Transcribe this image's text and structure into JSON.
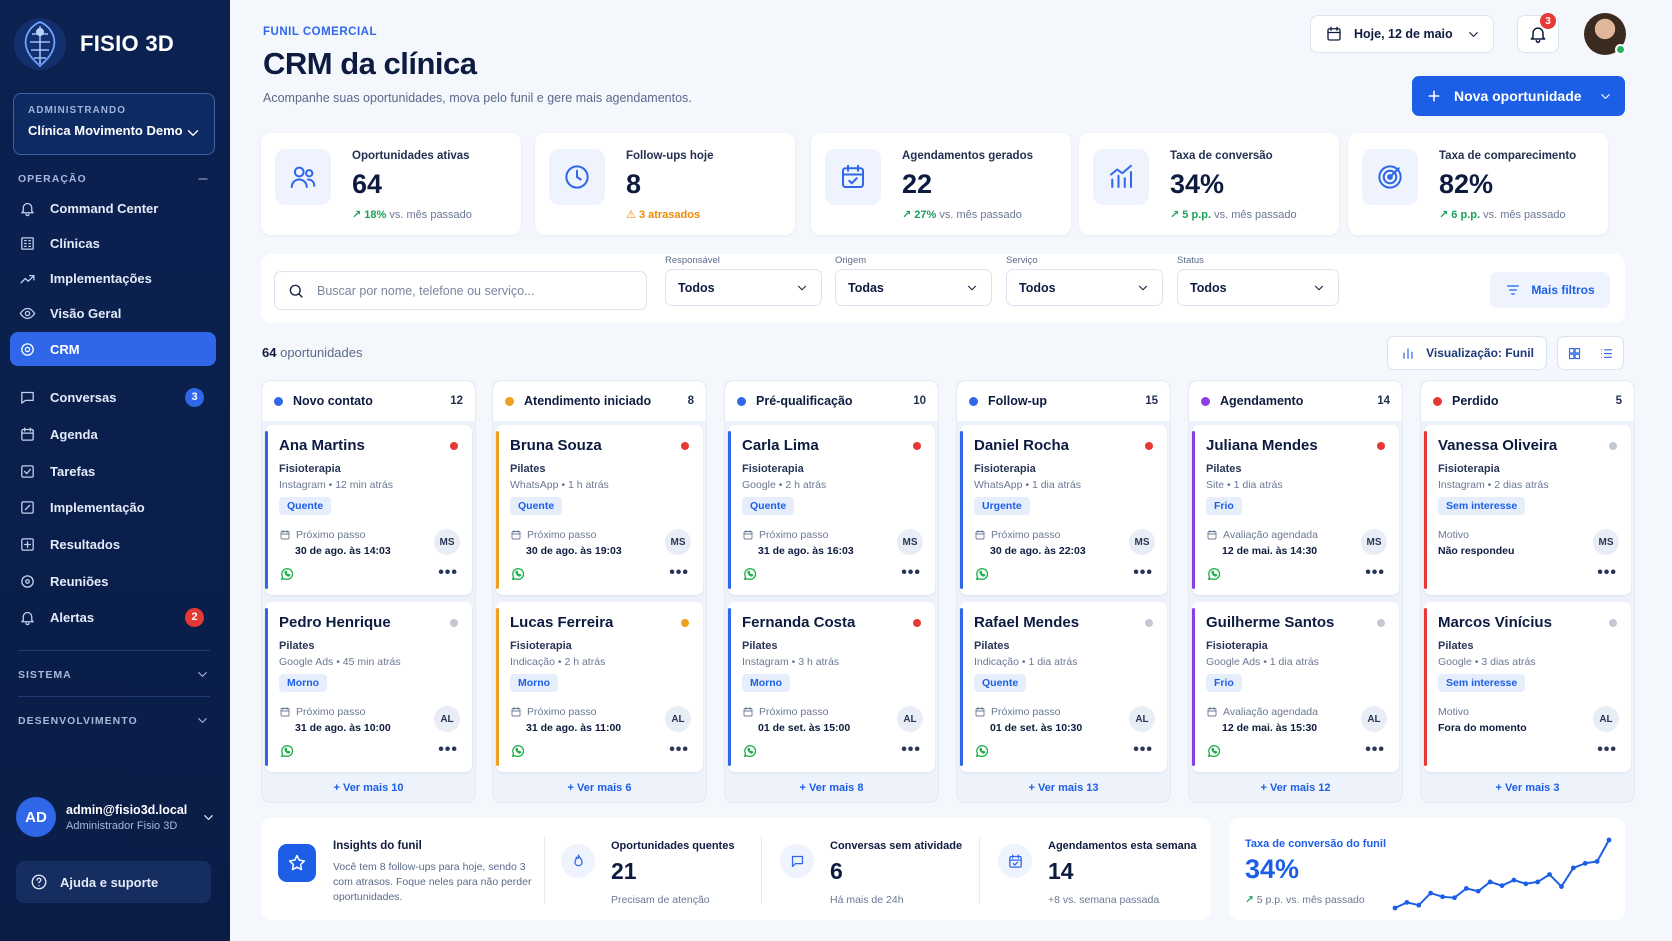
{
  "brand": {
    "name": "FISIO 3D"
  },
  "account": {
    "label": "ADMINISTRANDO",
    "clinic": "Clínica Movimento Demo"
  },
  "sidebar": {
    "sections": [
      {
        "label": "OPERAÇÃO"
      },
      {
        "label": "SISTEMA"
      },
      {
        "label": "DESENVOLVIMENTO"
      }
    ],
    "items": [
      {
        "label": "Command Center",
        "icon": "bell-icon"
      },
      {
        "label": "Clínicas",
        "icon": "building-icon"
      },
      {
        "label": "Implementações",
        "icon": "trend-icon"
      },
      {
        "label": "Visão Geral",
        "icon": "eye-icon"
      },
      {
        "label": "CRM",
        "icon": "target-icon",
        "active": true
      },
      {
        "label": "Conversas",
        "icon": "chat-icon",
        "badge": "3"
      },
      {
        "label": "Agenda",
        "icon": "calendar-icon"
      },
      {
        "label": "Tarefas",
        "icon": "checklist-icon"
      },
      {
        "label": "Implementação",
        "icon": "edit-icon"
      },
      {
        "label": "Resultados",
        "icon": "plus-square-icon"
      },
      {
        "label": "Reuniões",
        "icon": "circle-icon"
      },
      {
        "label": "Alertas",
        "icon": "bell-icon",
        "badge": "2"
      }
    ],
    "badge_colors": {
      "conversas": "#2f67e8",
      "alertas": "#e53935"
    }
  },
  "user": {
    "initials": "AD",
    "email": "admin@fisio3d.local",
    "role": "Administrador Fisio 3D"
  },
  "help": {
    "label": "Ajuda e suporte"
  },
  "header": {
    "eyebrow": "FUNIL COMERCIAL",
    "title": "CRM da clínica",
    "subtitle": "Acompanhe suas oportunidades, mova pelo funil e gere mais agendamentos.",
    "date_label": "Hoje, 12 de maio",
    "notifications": "3",
    "new_button": "Nova oportunidade"
  },
  "kpis": [
    {
      "label": "Oportunidades ativas",
      "value": "64",
      "delta": "18%",
      "delta_text": "vs. mês passado",
      "icon": "users-icon"
    },
    {
      "label": "Follow-ups hoje",
      "value": "8",
      "delta": "3 atrasados",
      "delta_text": "",
      "icon": "clock-icon"
    },
    {
      "label": "Agendamentos gerados",
      "value": "22",
      "delta": "27%",
      "delta_text": "vs. mês passado",
      "icon": "calendar-check-icon"
    },
    {
      "label": "Taxa de conversão",
      "value": "34%",
      "delta": "5 p.p.",
      "delta_text": "vs. mês passado",
      "icon": "bar-chart-icon"
    },
    {
      "label": "Taxa de comparecimento",
      "value": "82%",
      "delta": "6 p.p.",
      "delta_text": "vs. mês passado",
      "icon": "target-icon"
    }
  ],
  "filters": {
    "search_placeholder": "Buscar por nome, telefone ou serviço...",
    "selects": [
      {
        "label": "Responsável",
        "value": "Todos"
      },
      {
        "label": "Origem",
        "value": "Todas"
      },
      {
        "label": "Serviço",
        "value": "Todos"
      },
      {
        "label": "Status",
        "value": "Todos"
      }
    ],
    "more": "Mais filtros"
  },
  "summary": {
    "count": "64",
    "count_label": "oportunidades",
    "view_label": "Visualização: Funil"
  },
  "columns": [
    {
      "name": "Novo contato",
      "count": "12",
      "color": "#2f67e8",
      "see_more": "+ Ver mais 10",
      "cards": [
        {
          "name": "Ana Martins",
          "service": "Fisioterapia",
          "source": "Instagram • 12 min atrás",
          "tag": "Quente",
          "tag_kind": "blue",
          "priority": "#e53935",
          "next_label": "Próximo passo",
          "next_value": "30 de ago. às 14:03",
          "owner": "MS",
          "whatsapp": true
        },
        {
          "name": "Pedro Henrique",
          "service": "Pilates",
          "source": "Google Ads • 45 min atrás",
          "tag": "Morno",
          "tag_kind": "blue",
          "priority": "#c3c9d4",
          "next_label": "Próximo passo",
          "next_value": "31 de ago. às 10:00",
          "owner": "AL",
          "whatsapp": true
        }
      ]
    },
    {
      "name": "Atendimento iniciado",
      "count": "8",
      "color": "#f0a020",
      "see_more": "+ Ver mais 6",
      "cards": [
        {
          "name": "Bruna Souza",
          "service": "Pilates",
          "source": "WhatsApp • 1 h atrás",
          "tag": "Quente",
          "tag_kind": "blue",
          "priority": "#e53935",
          "next_label": "Próximo passo",
          "next_value": "30 de ago. às 19:03",
          "owner": "MS",
          "whatsapp": true
        },
        {
          "name": "Lucas Ferreira",
          "service": "Fisioterapia",
          "source": "Indicação • 2 h atrás",
          "tag": "Morno",
          "tag_kind": "blue",
          "priority": "#f0a020",
          "next_label": "Próximo passo",
          "next_value": "31 de ago. às 11:00",
          "owner": "AL",
          "whatsapp": true
        }
      ]
    },
    {
      "name": "Pré-qualificação",
      "count": "10",
      "color": "#2f67e8",
      "see_more": "+ Ver mais 8",
      "cards": [
        {
          "name": "Carla Lima",
          "service": "Fisioterapia",
          "source": "Google • 2 h atrás",
          "tag": "Quente",
          "tag_kind": "blue",
          "priority": "#e53935",
          "next_label": "Próximo passo",
          "next_value": "31 de ago. às 16:03",
          "owner": "MS",
          "whatsapp": true
        },
        {
          "name": "Fernanda Costa",
          "service": "Pilates",
          "source": "Instagram • 3 h atrás",
          "tag": "Morno",
          "tag_kind": "blue",
          "priority": "#e53935",
          "next_label": "Próximo passo",
          "next_value": "01 de set. às 15:00",
          "owner": "AL",
          "whatsapp": true
        }
      ]
    },
    {
      "name": "Follow-up",
      "count": "15",
      "color": "#2f67e8",
      "see_more": "+ Ver mais 13",
      "cards": [
        {
          "name": "Daniel Rocha",
          "service": "Fisioterapia",
          "source": "WhatsApp • 1 dia atrás",
          "tag": "Urgente",
          "tag_kind": "blue",
          "priority": "#e53935",
          "next_label": "Próximo passo",
          "next_value": "30 de ago. às 22:03",
          "owner": "MS",
          "whatsapp": true
        },
        {
          "name": "Rafael Mendes",
          "service": "Pilates",
          "source": "Indicação • 1 dia atrás",
          "tag": "Quente",
          "tag_kind": "blue",
          "priority": "#c3c9d4",
          "next_label": "Próximo passo",
          "next_value": "01 de set. às 10:30",
          "owner": "AL",
          "whatsapp": true
        }
      ]
    },
    {
      "name": "Agendamento",
      "count": "14",
      "color": "#8a3fe0",
      "see_more": "+ Ver mais 12",
      "cards": [
        {
          "name": "Juliana Mendes",
          "service": "Pilates",
          "source": "Site • 1 dia atrás",
          "tag": "Frio",
          "tag_kind": "blue",
          "priority": "#e53935",
          "next_label": "Avaliação agendada",
          "next_value": "12 de mai. às 14:30",
          "owner": "MS",
          "whatsapp": true
        },
        {
          "name": "Guilherme Santos",
          "service": "Fisioterapia",
          "source": "Google Ads • 1 dia atrás",
          "tag": "Frio",
          "tag_kind": "blue",
          "priority": "#c3c9d4",
          "next_label": "Avaliação agendada",
          "next_value": "12 de mai. às 15:30",
          "owner": "AL",
          "whatsapp": true
        }
      ]
    },
    {
      "name": "Perdido",
      "count": "5",
      "color": "#e53935",
      "see_more": "+ Ver mais 3",
      "cards": [
        {
          "name": "Vanessa Oliveira",
          "service": "Fisioterapia",
          "source": "Instagram • 2 dias atrás",
          "tag": "Sem interesse",
          "tag_kind": "blue",
          "priority": "#c3c9d4",
          "next_label": "Motivo",
          "next_value": "Não respondeu",
          "owner": "MS",
          "whatsapp": false
        },
        {
          "name": "Marcos Vinícius",
          "service": "Pilates",
          "source": "Google • 3 dias atrás",
          "tag": "Sem interesse",
          "tag_kind": "blue",
          "priority": "#c3c9d4",
          "next_label": "Motivo",
          "next_value": "Fora do momento",
          "owner": "AL",
          "whatsapp": false
        }
      ]
    }
  ],
  "insights": {
    "title": "Insights do funil",
    "text": "Você tem 8 follow-ups para hoje, sendo 3 com atrasos. Foque neles para não perder oportunidades.",
    "stats": [
      {
        "label": "Oportunidades quentes",
        "value": "21",
        "sub": "Precisam de atenção",
        "icon": "flame-icon"
      },
      {
        "label": "Conversas sem atividade",
        "value": "6",
        "sub": "Há mais de 24h",
        "icon": "chat-icon"
      },
      {
        "label": "Agendamentos esta semana",
        "value": "14",
        "sub": "+8 vs. semana passada",
        "icon": "calendar-check-icon"
      }
    ]
  },
  "conversion": {
    "label": "Taxa de conversão do funil",
    "value": "34%",
    "delta": "5 p.p.",
    "delta_text": "vs. mês passado",
    "trend": [
      12,
      18,
      15,
      28,
      24,
      23,
      33,
      30,
      40,
      36,
      42,
      38,
      40,
      48,
      35,
      55,
      60,
      62,
      85
    ]
  }
}
